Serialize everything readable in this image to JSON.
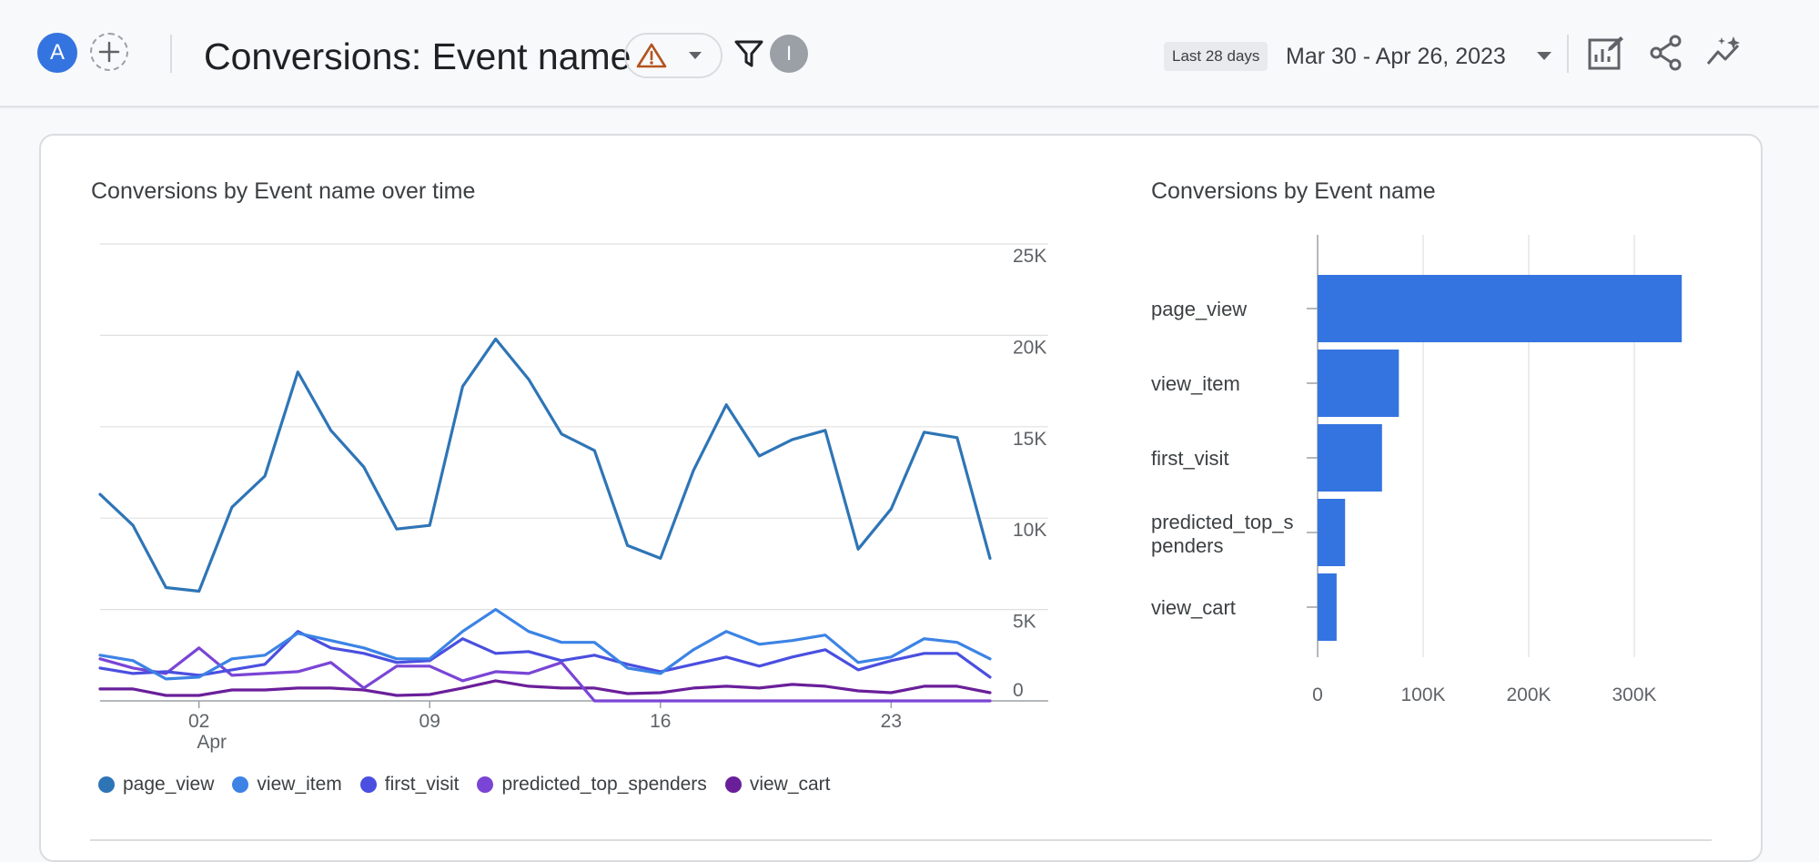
{
  "header": {
    "avatar_letter": "A",
    "title": "Conversions: Event name",
    "info_badge": "I",
    "range_chip": "Last 28 days",
    "date_range": "Mar 30 - Apr 26, 2023",
    "icons": [
      "plus-icon",
      "warning-icon",
      "chevron-down-icon",
      "filter-icon",
      "customize-report-icon",
      "share-icon",
      "insights-icon"
    ],
    "colors": {
      "avatar": "#3474e0",
      "warning": "#b3541e",
      "badge": "#9aa0a6"
    }
  },
  "line_chart": {
    "title": "Conversions by Event name over time",
    "y_ticks": [
      "25K",
      "20K",
      "15K",
      "10K",
      "5K",
      "0"
    ],
    "x_ticks": [
      "02",
      "09",
      "16",
      "23"
    ],
    "x_sub_label": "Apr"
  },
  "bar_chart": {
    "title": "Conversions by Event name",
    "categories": [
      "page_view",
      "view_item",
      "first_visit",
      "predicted_top_s\npenders",
      "view_cart"
    ],
    "x_ticks": [
      "0",
      "100K",
      "200K",
      "300K"
    ]
  },
  "legend": [
    {
      "label": "page_view",
      "color": "#2e75b6"
    },
    {
      "label": "view_item",
      "color": "#3c83e5"
    },
    {
      "label": "first_visit",
      "color": "#4a4fe0"
    },
    {
      "label": "predicted_top_spenders",
      "color": "#7a45d6"
    },
    {
      "label": "view_cart",
      "color": "#6a1f9a"
    }
  ],
  "chart_data": [
    {
      "type": "line",
      "title": "Conversions by Event name over time",
      "x": [
        "Mar 30",
        "Mar 31",
        "Apr 01",
        "Apr 02",
        "Apr 03",
        "Apr 04",
        "Apr 05",
        "Apr 06",
        "Apr 07",
        "Apr 08",
        "Apr 09",
        "Apr 10",
        "Apr 11",
        "Apr 12",
        "Apr 13",
        "Apr 14",
        "Apr 15",
        "Apr 16",
        "Apr 17",
        "Apr 18",
        "Apr 19",
        "Apr 20",
        "Apr 21",
        "Apr 22",
        "Apr 23",
        "Apr 24",
        "Apr 25",
        "Apr 26"
      ],
      "ylim": [
        0,
        25000
      ],
      "grid": true,
      "legend": "bottom",
      "series": [
        {
          "name": "page_view",
          "color": "#2e75b6",
          "values": [
            11300,
            9600,
            6200,
            6000,
            10600,
            12300,
            18000,
            14800,
            12800,
            9400,
            9600,
            17200,
            19800,
            17600,
            14600,
            13700,
            8500,
            7800,
            12600,
            16200,
            13400,
            14300,
            14800,
            8300,
            10500,
            14700,
            14400,
            7800
          ]
        },
        {
          "name": "view_item",
          "color": "#3c83e5",
          "values": [
            2500,
            2200,
            1200,
            1300,
            2300,
            2500,
            3700,
            3300,
            2900,
            2300,
            2300,
            3800,
            5000,
            3800,
            3200,
            3200,
            1800,
            1500,
            2800,
            3800,
            3100,
            3300,
            3600,
            2100,
            2400,
            3400,
            3200,
            2300
          ]
        },
        {
          "name": "first_visit",
          "color": "#4a4fe0",
          "values": [
            1800,
            1500,
            1600,
            1400,
            1700,
            2000,
            3800,
            2900,
            2600,
            2100,
            2200,
            3400,
            2600,
            2700,
            2200,
            2500,
            2000,
            1600,
            2000,
            2400,
            1900,
            2400,
            2800,
            1700,
            2200,
            2600,
            2600,
            1300
          ]
        },
        {
          "name": "predicted_top_spenders",
          "color": "#7a45d6",
          "values": [
            2300,
            1800,
            1500,
            2900,
            1400,
            1500,
            1600,
            2100,
            700,
            1900,
            1900,
            1100,
            1600,
            1500,
            2100,
            0,
            0,
            0,
            0,
            0,
            0,
            0,
            0,
            0,
            0,
            0,
            0,
            0
          ]
        },
        {
          "name": "view_cart",
          "color": "#6a1f9a",
          "values": [
            650,
            650,
            300,
            300,
            600,
            600,
            700,
            700,
            600,
            300,
            350,
            700,
            1100,
            800,
            700,
            700,
            400,
            450,
            700,
            800,
            700,
            900,
            800,
            550,
            450,
            800,
            800,
            450
          ]
        }
      ]
    },
    {
      "type": "bar",
      "orientation": "horizontal",
      "title": "Conversions by Event name",
      "categories": [
        "page_view",
        "view_item",
        "first_visit",
        "predicted_top_spenders",
        "view_cart"
      ],
      "values": [
        345000,
        77000,
        61000,
        26000,
        18000
      ],
      "xlim": [
        0,
        370000
      ],
      "color": "#3474e0",
      "grid": true
    }
  ]
}
